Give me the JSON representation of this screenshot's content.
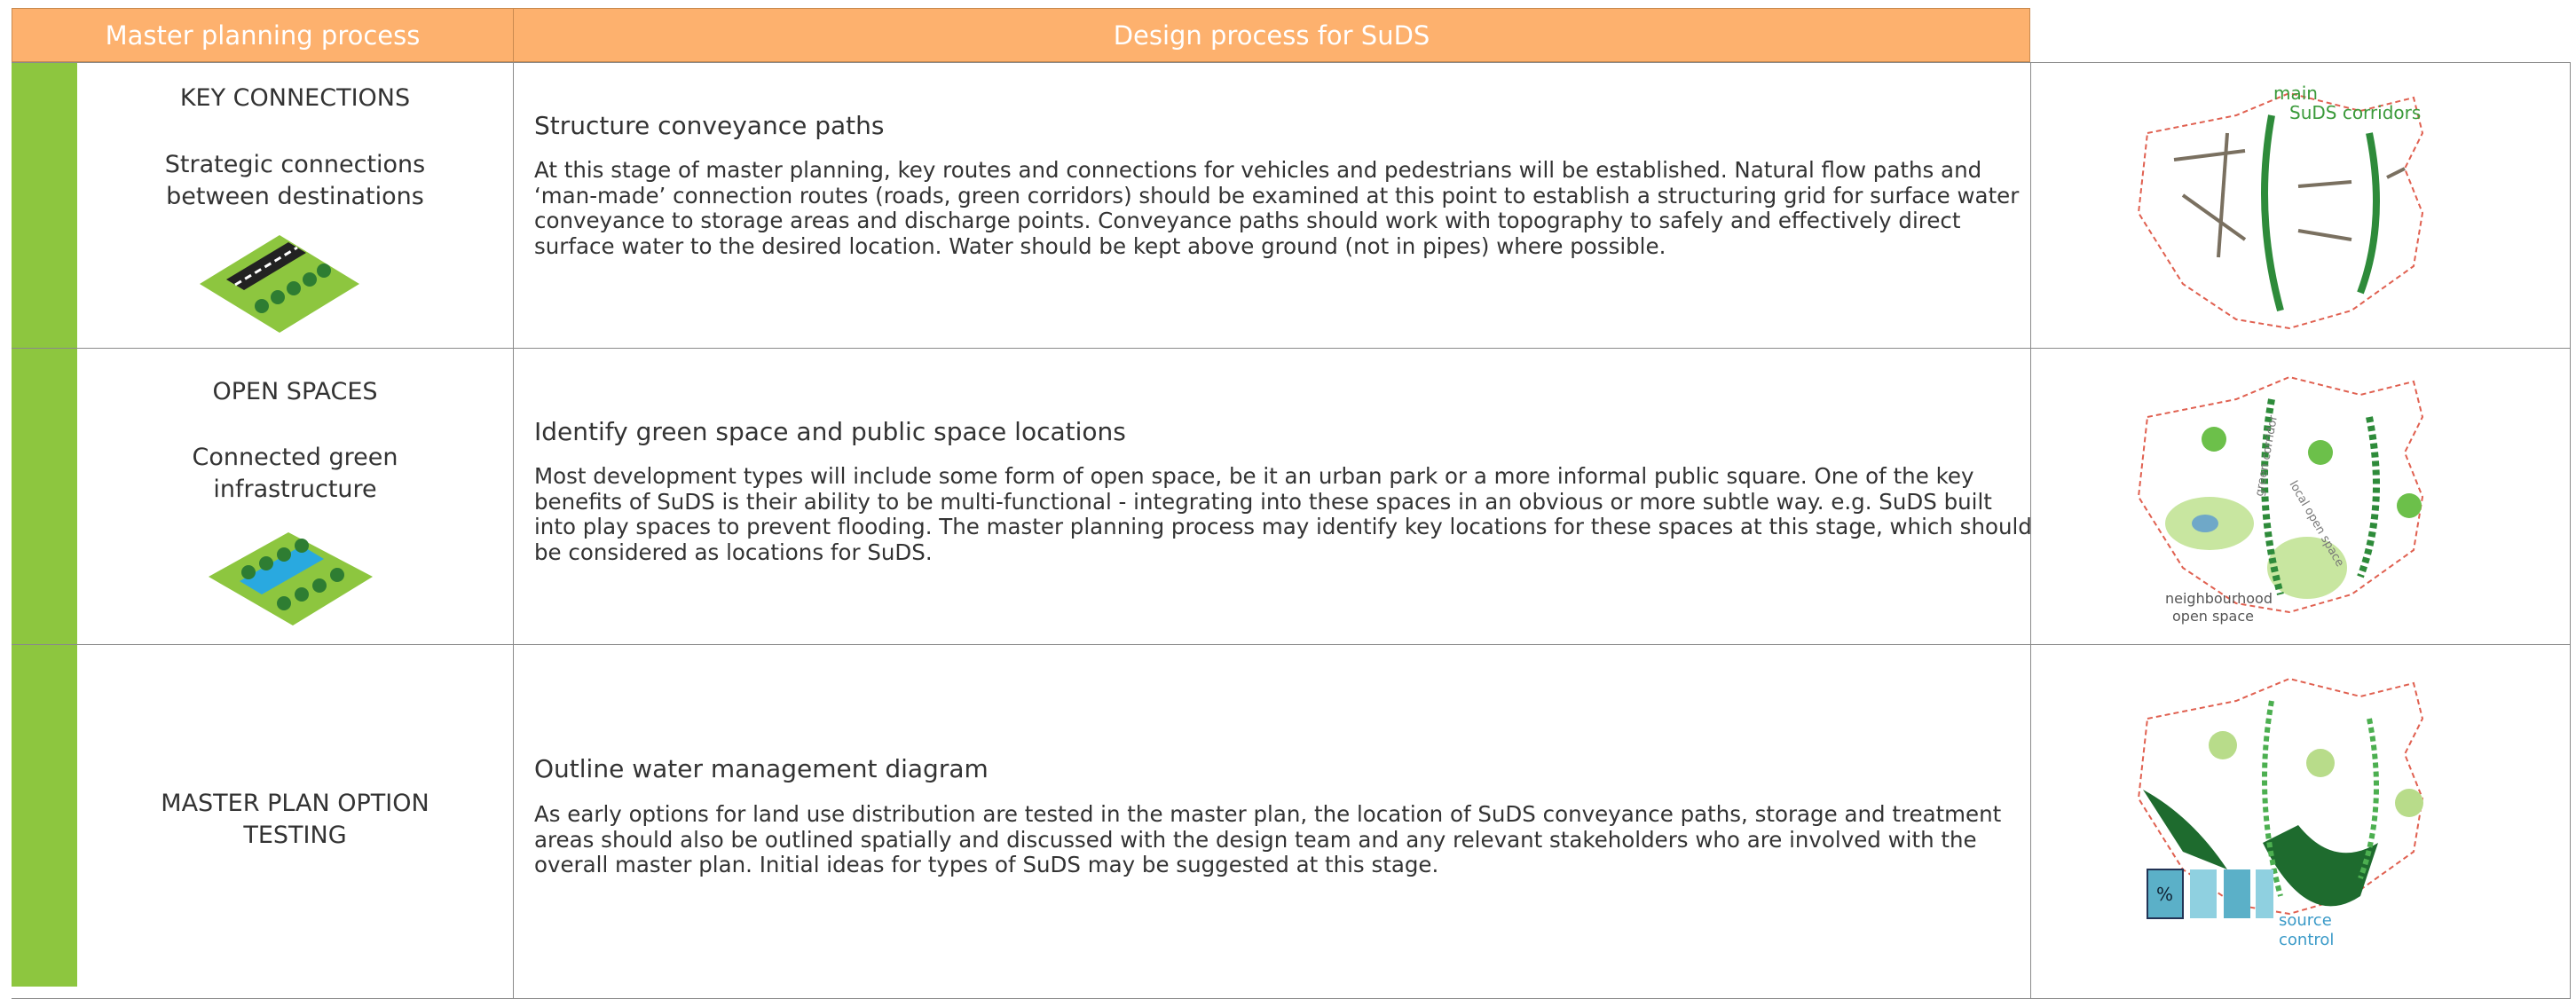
{
  "header": {
    "columns": [
      "Master planning process",
      "Design process for SuDS"
    ]
  },
  "rows": [
    {
      "left_title": "KEY CONNECTIONS",
      "left_subtitle": "Strategic connections between destinations",
      "title": "Structure conveyance paths",
      "body": "At this stage of master planning, key routes and connections for vehicles and pedestrians will be established. Natural flow paths and ‘man-made’ connection routes (roads, green corridors) should be examined at this point to establish a structuring grid for surface water conveyance to storage areas and discharge points. Conveyance paths should work with topography to safely and effectively direct surface water to the desired location.  Water should be kept above ground (not in pipes) where possible.",
      "diagram_labels": [
        "main",
        "SuDS corridors"
      ]
    },
    {
      "left_title": "OPEN SPACES",
      "left_subtitle": "Connected green infrastructure",
      "title": "Identify green space and public space locations",
      "body": "Most development types will include some form of open space, be it an urban park or a more informal public square. One of the key benefits of SuDS is their ability to be multi-functional - integrating into these spaces  in an obvious or more subtle way. e.g. SuDS built into play spaces to prevent flooding. The master planning process may identify key locations for these spaces at this stage, which should be considered as locations for SuDS.",
      "diagram_labels": [
        "green corridor",
        "local open space",
        "neighbourhood",
        "open space"
      ]
    },
    {
      "left_title": "MASTER PLAN OPTION TESTING",
      "title": "Outline water management diagram",
      "body": "As early options for land use distribution are tested in the master plan, the location of SuDS conveyance paths, storage and treatment areas should also be outlined spatially and discussed with the design team and any relevant stakeholders who are involved with the overall master plan. Initial ideas for types of SuDS may be suggested at this stage.",
      "diagram_labels": [
        "%",
        "source",
        "control"
      ]
    }
  ]
}
